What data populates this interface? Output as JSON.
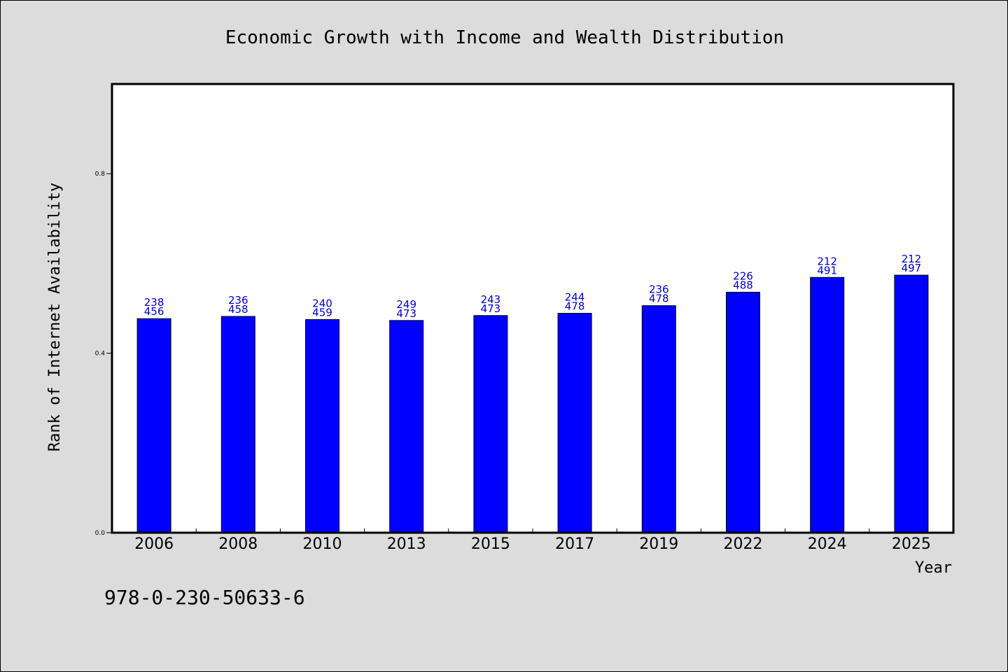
{
  "chart_data": {
    "type": "bar",
    "title": "Economic Growth with Income and Wealth Distribution",
    "xlabel": "Year",
    "ylabel": "Rank of Internet Availability",
    "categories": [
      "2006",
      "2008",
      "2010",
      "2013",
      "2015",
      "2017",
      "2019",
      "2022",
      "2024",
      "2025"
    ],
    "values": [
      0.477,
      0.482,
      0.475,
      0.473,
      0.484,
      0.489,
      0.506,
      0.536,
      0.569,
      0.574
    ],
    "bar_labels": [
      [
        "238",
        "456"
      ],
      [
        "236",
        "458"
      ],
      [
        "240",
        "459"
      ],
      [
        "249",
        "473"
      ],
      [
        "243",
        "473"
      ],
      [
        "244",
        "478"
      ],
      [
        "236",
        "478"
      ],
      [
        "226",
        "488"
      ],
      [
        "212",
        "491"
      ],
      [
        "212",
        "497"
      ]
    ],
    "yticks": [
      "0.0",
      "0.4",
      "0.8"
    ],
    "ylim": [
      0.0,
      1.0
    ],
    "bar_color": "#0000ff",
    "label_color": "#0000cc",
    "background": "#dcdcdc",
    "plot_background": "#ffffff",
    "grid": false,
    "legend": "none"
  },
  "footer": {
    "isbn": "978-0-230-50633-6"
  }
}
